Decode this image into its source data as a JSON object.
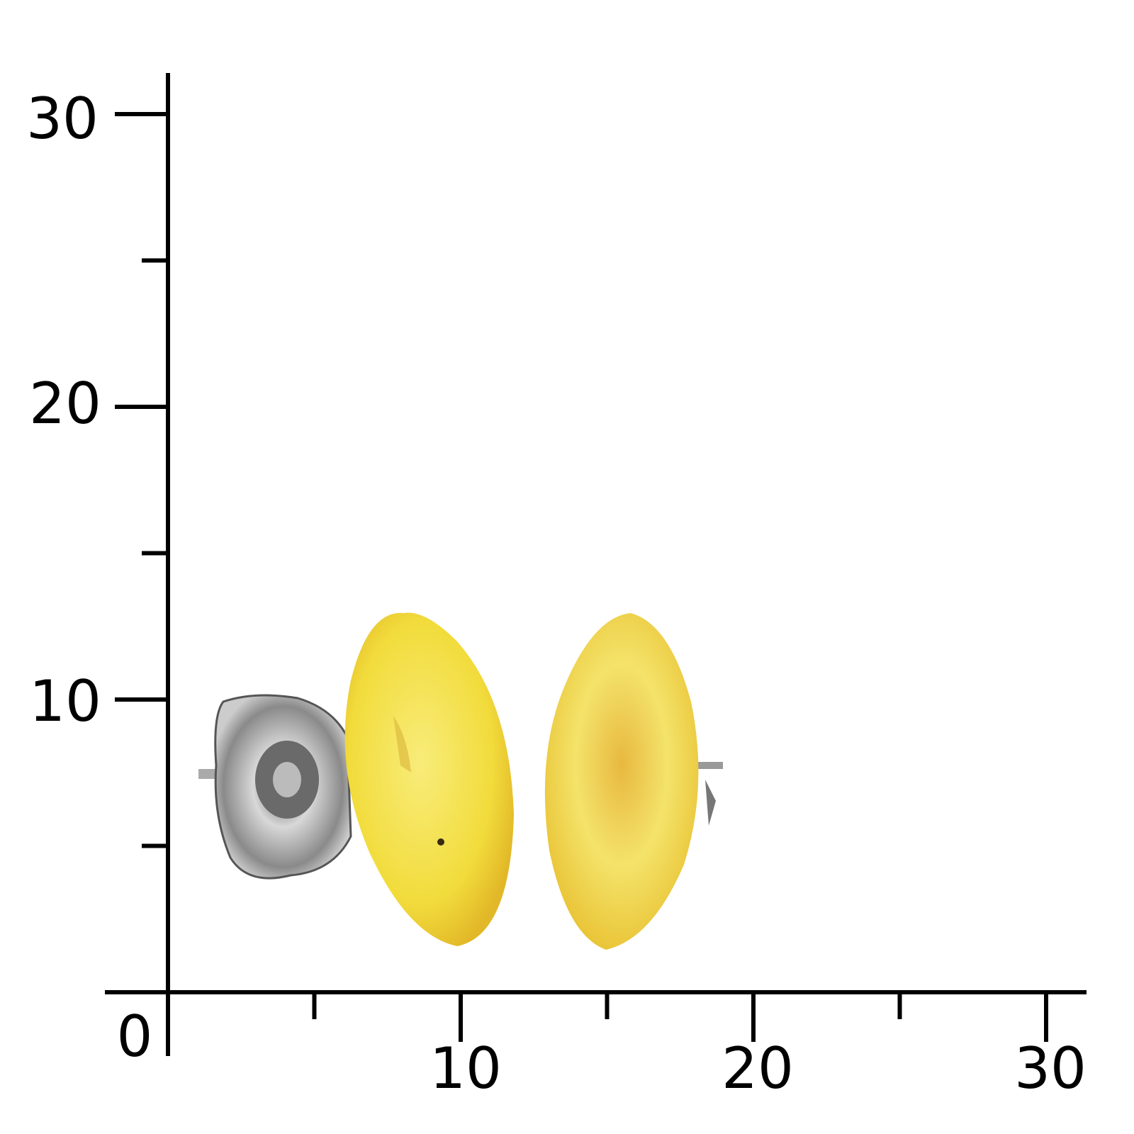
{
  "scale": {
    "y_labels": [
      "30",
      "20",
      "10"
    ],
    "x_labels": [
      "10",
      "20",
      "30"
    ],
    "origin_label": "0",
    "unit_step": 5,
    "max": 30
  },
  "photo": {
    "subject": "amber-stud-earrings",
    "stone_color": "#f2dc3c",
    "metal_color": "#b8b8b8"
  }
}
